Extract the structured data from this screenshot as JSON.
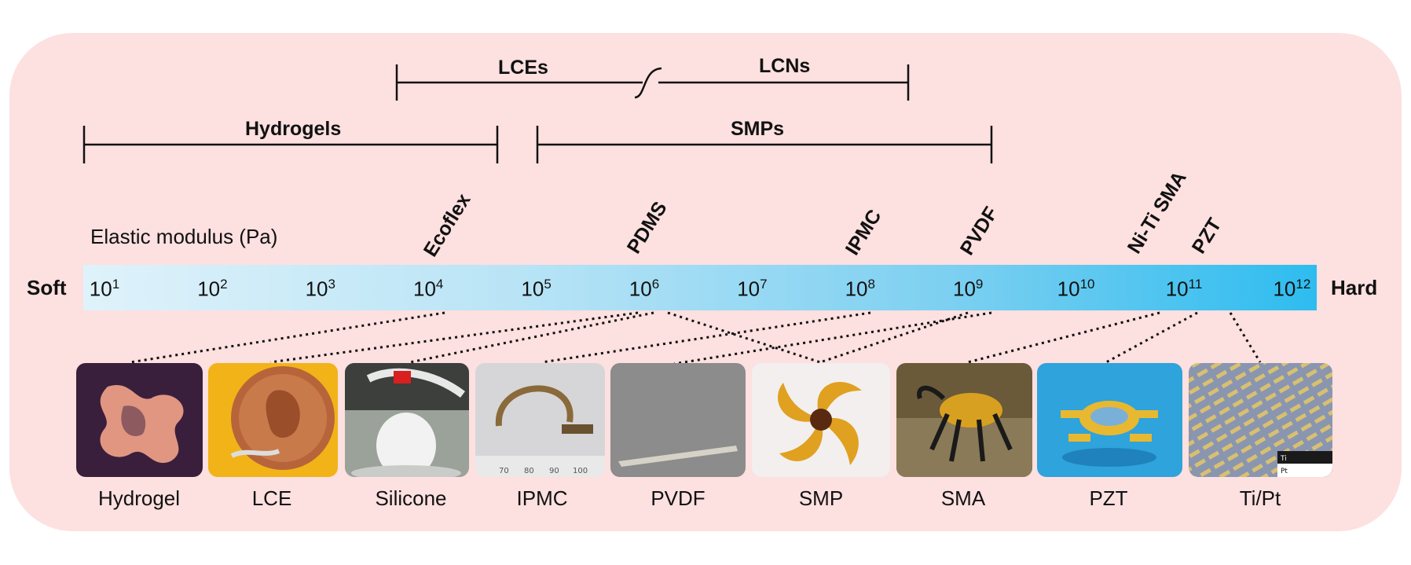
{
  "ranges": {
    "lces": "LCEs",
    "lcns": "LCNs",
    "hydrogels": "Hydrogels",
    "smps": "SMPs"
  },
  "axis": {
    "title": "Elastic modulus (Pa)",
    "soft": "Soft",
    "hard": "Hard",
    "base": "10",
    "exponents": [
      "1",
      "2",
      "3",
      "4",
      "5",
      "6",
      "7",
      "8",
      "9",
      "10",
      "11",
      "12"
    ]
  },
  "materials": {
    "ecoflex": "Ecoflex",
    "pdms": "PDMS",
    "ipmc": "IPMC",
    "pvdf": "PVDF",
    "niti": "Ni-Ti SMA",
    "pzt": "PZT"
  },
  "photos": [
    "Hydrogel",
    "LCE",
    "Silicone",
    "IPMC",
    "PVDF",
    "SMP",
    "SMA",
    "PZT",
    "Ti/Pt"
  ],
  "tipt_inset": {
    "ti": "Ti",
    "pt": "Pt"
  },
  "colors": {
    "panel": "#fde0e0",
    "bar_start": "#dff2fa",
    "bar_end": "#2ebcef"
  }
}
